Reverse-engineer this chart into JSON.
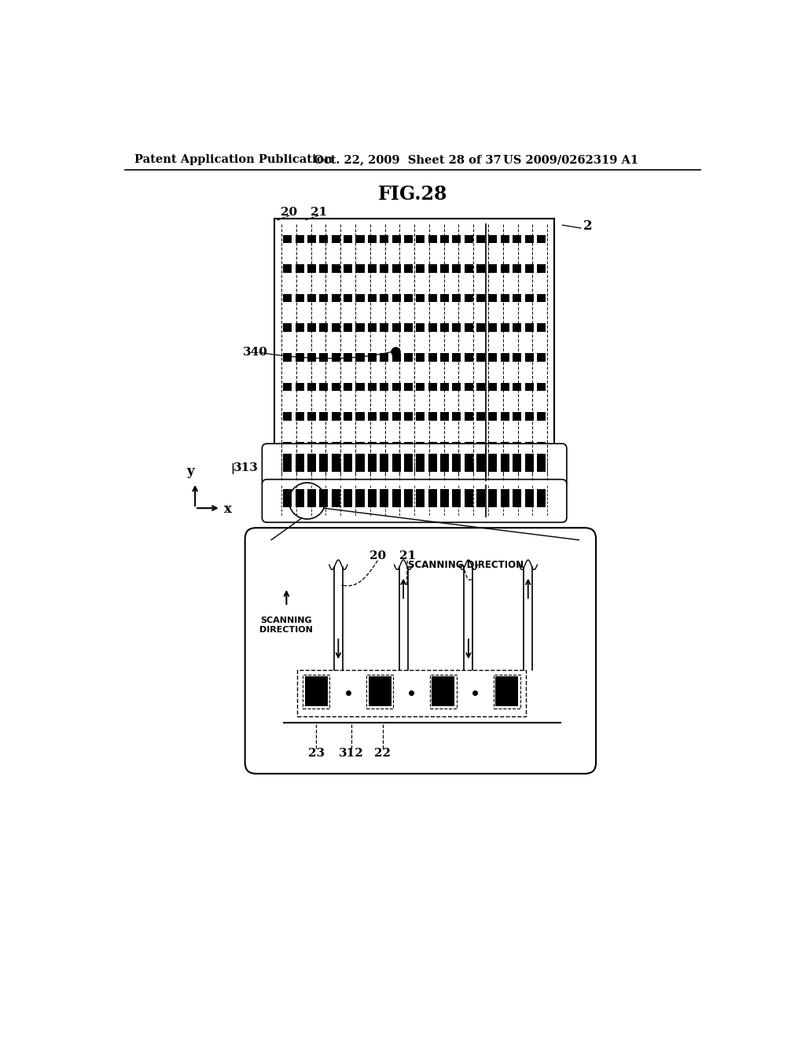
{
  "title": "FIG.28",
  "header_left": "Patent Application Publication",
  "header_mid": "Oct. 22, 2009  Sheet 28 of 37",
  "header_right": "US 2009/0262319 A1",
  "bg_color": "#ffffff",
  "line_color": "#000000"
}
